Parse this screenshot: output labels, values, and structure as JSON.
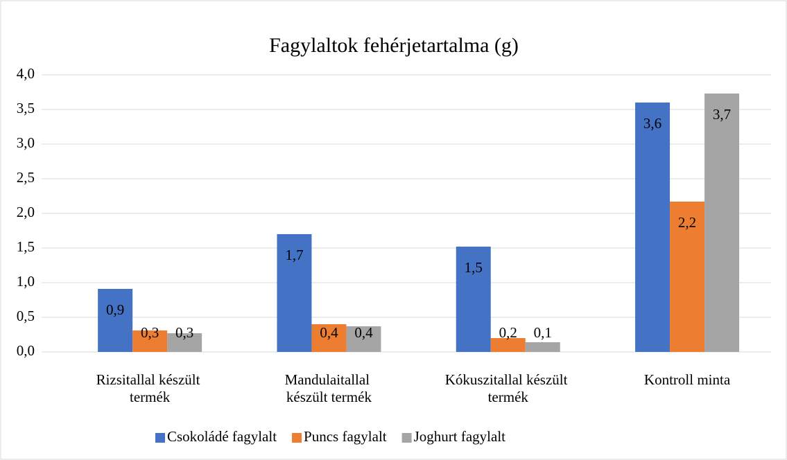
{
  "chart_data": {
    "type": "bar",
    "title": "Fagylaltok fehérjetartalma (g)",
    "categories": [
      "Rizsitallal készült termék",
      "Mandulaitallal készült termék",
      "Kókuszitallal készült termék",
      "Kontroll minta"
    ],
    "series": [
      {
        "name": "Csokoládé fagylalt",
        "color": "#4472c4",
        "values": [
          0.91,
          1.7,
          1.52,
          3.6
        ],
        "value_labels": [
          "0,9",
          "1,7",
          "1,5",
          "3,6"
        ]
      },
      {
        "name": "Puncs fagylalt",
        "color": "#ed7d31",
        "values": [
          0.31,
          0.4,
          0.2,
          2.17
        ],
        "value_labels": [
          "0,3",
          "0,4",
          "0,2",
          "2,2"
        ]
      },
      {
        "name": "Joghurt fagylalt",
        "color": "#a5a5a5",
        "values": [
          0.27,
          0.37,
          0.14,
          3.73
        ],
        "value_labels": [
          "0,3",
          "0,4",
          "0,1",
          "3,7"
        ]
      }
    ],
    "ylim": [
      0,
      4
    ],
    "yticks": [
      {
        "value": 0,
        "label": "0,0"
      },
      {
        "value": 0.5,
        "label": "0,5"
      },
      {
        "value": 1,
        "label": "1,0"
      },
      {
        "value": 1.5,
        "label": "1,5"
      },
      {
        "value": 2,
        "label": "2,0"
      },
      {
        "value": 2.5,
        "label": "2,5"
      },
      {
        "value": 3,
        "label": "3,0"
      },
      {
        "value": 3.5,
        "label": "3,5"
      },
      {
        "value": 4,
        "label": "4,0"
      }
    ],
    "grid": true,
    "legend": "bottom"
  }
}
